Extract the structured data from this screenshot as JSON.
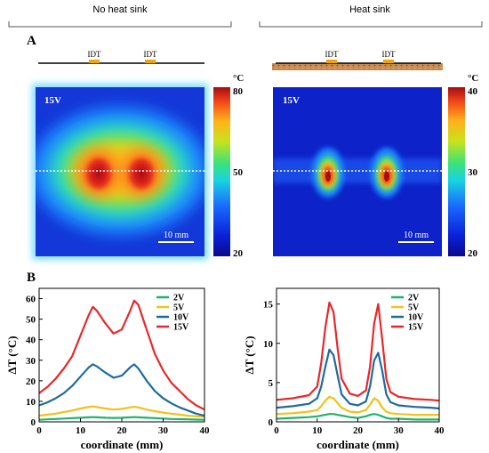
{
  "header": {
    "left": "No heat sink",
    "right": "Heat sink"
  },
  "panels": {
    "a": "A",
    "b": "B"
  },
  "devices": {
    "idt_label": "IDT"
  },
  "maps": [
    {
      "voltage_label": "15V",
      "scale_bar": "10 mm",
      "colorbar": {
        "unit": "°C",
        "ticks": [
          "80",
          "50",
          "20"
        ],
        "min": 20,
        "max": 80
      }
    },
    {
      "voltage_label": "15V",
      "scale_bar": "10 mm",
      "colorbar": {
        "unit": "°C",
        "ticks": [
          "40",
          "30",
          "20"
        ],
        "min": 20,
        "max": 40
      }
    }
  ],
  "colors": {
    "2V": "#1fb36b",
    "5V": "#f2c21b",
    "10V": "#1f6b9c",
    "15V": "#e8282b"
  },
  "chart_data": [
    {
      "type": "line",
      "title": "",
      "xlabel": "coordinate (mm)",
      "ylabel": "ΔT (°C)",
      "xlim": [
        0,
        40
      ],
      "ylim": [
        0,
        65
      ],
      "xticks": [
        "0",
        "10",
        "20",
        "30",
        "40"
      ],
      "yticks": [
        "0",
        "10",
        "20",
        "30",
        "40",
        "50",
        "60"
      ],
      "legend_position": "top-right",
      "x": [
        0,
        2,
        4,
        6,
        8,
        10,
        12,
        13,
        14,
        16,
        18,
        20,
        22,
        23,
        24,
        26,
        28,
        30,
        32,
        34,
        36,
        38,
        40
      ],
      "series": [
        {
          "name": "2V",
          "values": [
            1.0,
            1.2,
            1.4,
            1.6,
            1.8,
            2.0,
            2.2,
            2.3,
            2.2,
            2.0,
            1.9,
            2.0,
            2.2,
            2.3,
            2.2,
            2.0,
            1.8,
            1.6,
            1.4,
            1.3,
            1.2,
            1.1,
            1.0
          ]
        },
        {
          "name": "5V",
          "values": [
            3.0,
            3.5,
            4.0,
            4.8,
            5.5,
            6.5,
            7.3,
            7.5,
            7.2,
            6.5,
            6.0,
            6.3,
            7.0,
            7.4,
            7.0,
            6.0,
            5.2,
            4.5,
            4.0,
            3.5,
            3.0,
            2.7,
            2.5
          ]
        },
        {
          "name": "10V",
          "values": [
            8,
            9.5,
            11.5,
            14,
            17.5,
            22,
            26.5,
            28,
            27,
            24,
            21.5,
            22.5,
            26.5,
            28,
            26,
            20,
            15,
            11.5,
            9,
            7,
            5.5,
            4,
            3
          ]
        },
        {
          "name": "15V",
          "values": [
            14,
            17,
            21,
            26,
            32,
            42,
            52,
            56,
            54,
            48,
            43,
            45,
            54,
            59,
            57,
            45,
            33,
            25,
            19,
            15,
            11,
            8,
            6
          ]
        }
      ]
    },
    {
      "type": "line",
      "title": "",
      "xlabel": "coordinate (mm)",
      "ylabel": "ΔT (°C)",
      "xlim": [
        0,
        40
      ],
      "ylim": [
        0,
        17
      ],
      "xticks": [
        "0",
        "10",
        "20",
        "30",
        "40"
      ],
      "yticks": [
        "0",
        "5",
        "10",
        "15"
      ],
      "legend_position": "top-right",
      "x": [
        0,
        4,
        8,
        10,
        11,
        12,
        13,
        14,
        15,
        16,
        18,
        20,
        22,
        23,
        24,
        25,
        26,
        27,
        28,
        30,
        34,
        38,
        40
      ],
      "series": [
        {
          "name": "2V",
          "values": [
            0.4,
            0.5,
            0.6,
            0.7,
            0.8,
            0.9,
            1.0,
            1.0,
            0.9,
            0.8,
            0.6,
            0.5,
            0.7,
            0.9,
            1.0,
            0.9,
            0.7,
            0.5,
            0.4,
            0.4,
            0.3,
            0.3,
            0.3
          ]
        },
        {
          "name": "5V",
          "values": [
            1.0,
            1.1,
            1.3,
            1.5,
            2.0,
            2.7,
            3.2,
            3.0,
            2.4,
            1.8,
            1.3,
            1.2,
            1.5,
            2.2,
            3.0,
            2.7,
            1.8,
            1.3,
            1.1,
            1.0,
            0.9,
            0.9,
            0.9
          ]
        },
        {
          "name": "10V",
          "values": [
            1.8,
            2.0,
            2.3,
            3.0,
            4.5,
            7.0,
            9.2,
            8.5,
            6.0,
            3.5,
            2.3,
            2.1,
            2.6,
            4.5,
            7.8,
            8.8,
            6.5,
            3.5,
            2.5,
            2.1,
            1.9,
            1.8,
            1.7
          ]
        },
        {
          "name": "15V",
          "values": [
            2.8,
            3.0,
            3.4,
            4.5,
            7.5,
            12.0,
            15.2,
            14.0,
            9.5,
            5.5,
            3.6,
            3.3,
            4.0,
            7.0,
            12.5,
            15.0,
            10.5,
            5.5,
            3.8,
            3.2,
            2.9,
            2.8,
            2.7
          ]
        }
      ]
    }
  ]
}
